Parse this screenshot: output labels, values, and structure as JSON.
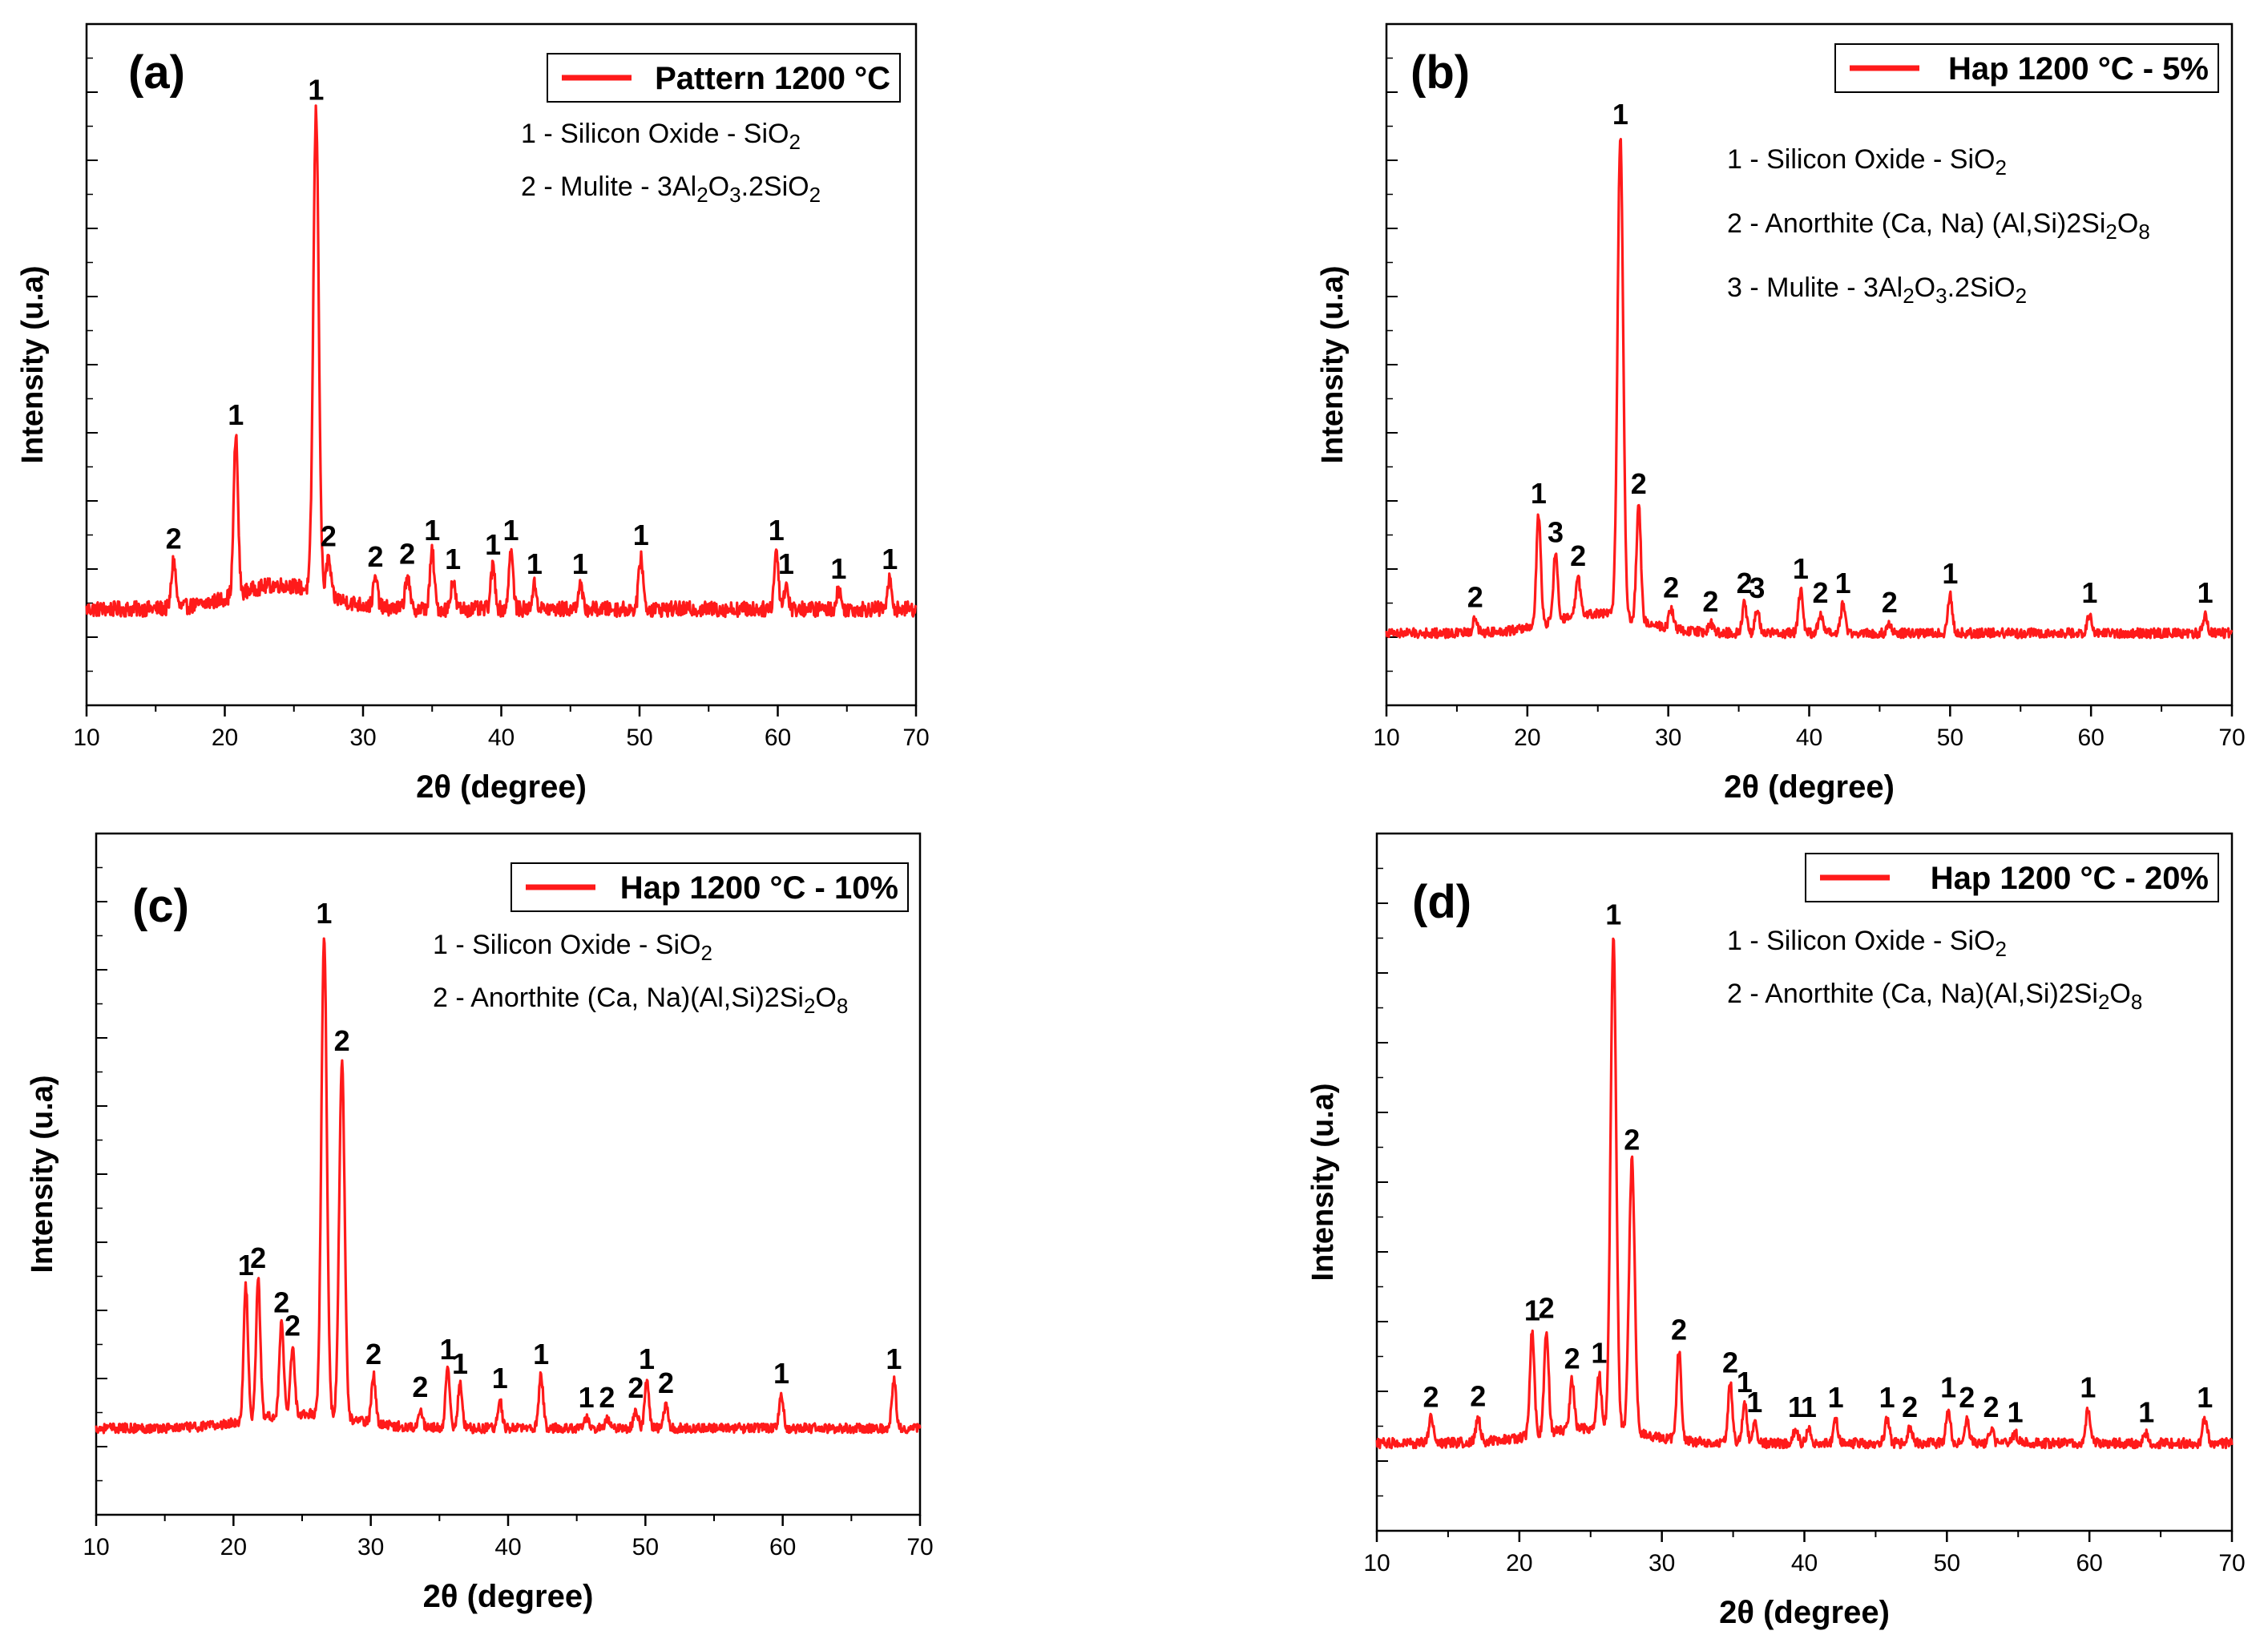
{
  "chart_data": [
    {
      "type": "line",
      "panel_label": "(a)",
      "legend": "Pattern 1200 °C",
      "phases": [
        {
          "prefix": "1 - Silicon Oxide - SiO",
          "sub": "2",
          "rest": "",
          "sub2": "",
          "rest2": ""
        },
        {
          "prefix": "2 - Mulite -  3Al",
          "sub": "2",
          "rest": "O",
          "sub2": "3",
          "rest2": ".2SiO",
          "sub3": "2"
        }
      ],
      "xlabel": "2θ (degree)",
      "ylabel": "Intensity (u.a)",
      "xlim": [
        10,
        70
      ],
      "xticks": [
        "10",
        "20",
        "30",
        "40",
        "50",
        "60",
        "70"
      ],
      "baseline": 10,
      "noise": 1.6,
      "hump": {
        "center": 24,
        "width": 4.5,
        "height": 5
      },
      "peaks": [
        {
          "x": 16.3,
          "h": 10,
          "label": "2"
        },
        {
          "x": 20.8,
          "h": 33,
          "label": "1"
        },
        {
          "x": 26.6,
          "h": 100,
          "label": "1"
        },
        {
          "x": 27.5,
          "h": 8,
          "label": "2"
        },
        {
          "x": 30.9,
          "h": 6,
          "label": "2"
        },
        {
          "x": 33.2,
          "h": 7,
          "label": "2"
        },
        {
          "x": 35.0,
          "h": 12,
          "label": "1"
        },
        {
          "x": 36.5,
          "h": 6,
          "label": "1"
        },
        {
          "x": 39.4,
          "h": 9,
          "label": "1"
        },
        {
          "x": 40.7,
          "h": 12,
          "label": "1"
        },
        {
          "x": 42.4,
          "h": 5,
          "label": "1"
        },
        {
          "x": 45.7,
          "h": 5,
          "label": "1"
        },
        {
          "x": 50.1,
          "h": 11,
          "label": "1"
        },
        {
          "x": 59.9,
          "h": 12,
          "label": "1"
        },
        {
          "x": 60.6,
          "h": 5,
          "label": "1"
        },
        {
          "x": 64.4,
          "h": 4,
          "label": "1"
        },
        {
          "x": 68.1,
          "h": 6,
          "label": "1"
        }
      ]
    },
    {
      "type": "line",
      "panel_label": "(b)",
      "legend": "Hap 1200 °C - 5%",
      "phases": [
        {
          "prefix": "1 - Silicon Oxide - SiO",
          "sub": "2",
          "rest": "",
          "sub2": "",
          "rest2": ""
        },
        {
          "prefix": "2 - Anorthite (Ca, Na) (Al,Si)2Si",
          "sub": "2",
          "rest": "O",
          "sub2": "8",
          "rest2": ""
        },
        {
          "prefix": "3 - Mulite - 3Al",
          "sub": "2",
          "rest": "O",
          "sub2": "3",
          "rest2": ".2SiO",
          "sub3": "2"
        }
      ],
      "xlabel": "2θ (degree)",
      "ylabel": "Intensity (u.a)",
      "xlim": [
        10,
        70
      ],
      "xticks": [
        "10",
        "20",
        "30",
        "40",
        "50",
        "60",
        "70"
      ],
      "baseline": 5,
      "noise": 1.0,
      "hump": {
        "center": 25,
        "width": 4.5,
        "height": 4
      },
      "peaks": [
        {
          "x": 16.3,
          "h": 3,
          "label": "2"
        },
        {
          "x": 20.8,
          "h": 23,
          "label": "1"
        },
        {
          "x": 22.0,
          "h": 14,
          "label": "3"
        },
        {
          "x": 23.6,
          "h": 8,
          "label": "2"
        },
        {
          "x": 26.6,
          "h": 100,
          "label": "1"
        },
        {
          "x": 27.9,
          "h": 24,
          "label": "2"
        },
        {
          "x": 30.2,
          "h": 4,
          "label": "2"
        },
        {
          "x": 33.0,
          "h": 2,
          "label": "2"
        },
        {
          "x": 35.4,
          "h": 6,
          "label": "2"
        },
        {
          "x": 36.3,
          "h": 5,
          "label": "3"
        },
        {
          "x": 39.4,
          "h": 9,
          "label": "1"
        },
        {
          "x": 40.8,
          "h": 4,
          "label": "2"
        },
        {
          "x": 42.4,
          "h": 6,
          "label": "1"
        },
        {
          "x": 45.7,
          "h": 2,
          "label": "2"
        },
        {
          "x": 50.0,
          "h": 8,
          "label": "1"
        },
        {
          "x": 59.9,
          "h": 4,
          "label": "1"
        },
        {
          "x": 68.1,
          "h": 4,
          "label": "1"
        }
      ]
    },
    {
      "type": "line",
      "panel_label": "(c)",
      "legend": "Hap 1200 °C - 10%",
      "phases": [
        {
          "prefix": "1 - Silicon Oxide - SiO",
          "sub": "2",
          "rest": "",
          "sub2": "",
          "rest2": ""
        },
        {
          "prefix": "2 - Anorthite (Ca, Na)(Al,Si)2Si",
          "sub": "2",
          "rest": "O",
          "sub2": "8",
          "rest2": ""
        }
      ],
      "xlabel": "2θ (degree)",
      "ylabel": "Intensity (u.a)",
      "xlim": [
        10,
        70
      ],
      "xticks": [
        "10",
        "20",
        "30",
        "40",
        "50",
        "60",
        "70"
      ],
      "baseline": 8,
      "noise": 1.0,
      "hump": {
        "center": 25,
        "width": 5,
        "height": 3
      },
      "peaks": [
        {
          "x": 20.9,
          "h": 28,
          "label": "1"
        },
        {
          "x": 21.8,
          "h": 29,
          "label": "2"
        },
        {
          "x": 23.5,
          "h": 19,
          "label": "2"
        },
        {
          "x": 24.3,
          "h": 14,
          "label": "2"
        },
        {
          "x": 26.6,
          "h": 100,
          "label": "1"
        },
        {
          "x": 27.9,
          "h": 74,
          "label": "2"
        },
        {
          "x": 30.2,
          "h": 10,
          "label": "2"
        },
        {
          "x": 33.6,
          "h": 4,
          "label": "2"
        },
        {
          "x": 35.6,
          "h": 12,
          "label": "1"
        },
        {
          "x": 36.5,
          "h": 9,
          "label": "1"
        },
        {
          "x": 39.4,
          "h": 6,
          "label": "1"
        },
        {
          "x": 42.4,
          "h": 11,
          "label": "1"
        },
        {
          "x": 45.7,
          "h": 2,
          "label": "1"
        },
        {
          "x": 47.2,
          "h": 2,
          "label": "2"
        },
        {
          "x": 49.3,
          "h": 4,
          "label": "2"
        },
        {
          "x": 50.1,
          "h": 10,
          "label": "1"
        },
        {
          "x": 51.5,
          "h": 5,
          "label": "2"
        },
        {
          "x": 59.9,
          "h": 7,
          "label": "1"
        },
        {
          "x": 68.1,
          "h": 10,
          "label": "1"
        }
      ]
    },
    {
      "type": "line",
      "panel_label": "(d)",
      "legend": "Hap 1200 °C - 20%",
      "phases": [
        {
          "prefix": "1 - Silicon Oxide - SiO",
          "sub": "2",
          "rest": "",
          "sub2": "",
          "rest2": ""
        },
        {
          "prefix": "2 - Anorthite (Ca, Na)(Al,Si)2Si",
          "sub": "2",
          "rest": "O",
          "sub2": "8",
          "rest2": ""
        }
      ],
      "xlabel": "2θ (degree)",
      "ylabel": "Intensity (u.a)",
      "xlim": [
        10,
        70
      ],
      "xticks": [
        "10",
        "20",
        "30",
        "40",
        "50",
        "60",
        "70"
      ],
      "baseline": 8,
      "noise": 1.0,
      "hump": {
        "center": 25,
        "width": 5,
        "height": 3
      },
      "peaks": [
        {
          "x": 13.8,
          "h": 5,
          "label": "2"
        },
        {
          "x": 17.1,
          "h": 5,
          "label": "2"
        },
        {
          "x": 20.9,
          "h": 21,
          "label": "1"
        },
        {
          "x": 21.9,
          "h": 21,
          "label": "2"
        },
        {
          "x": 23.7,
          "h": 10,
          "label": "2"
        },
        {
          "x": 25.6,
          "h": 11,
          "label": "1"
        },
        {
          "x": 26.6,
          "h": 100,
          "label": "1"
        },
        {
          "x": 27.9,
          "h": 55,
          "label": "2"
        },
        {
          "x": 31.2,
          "h": 18,
          "label": "2"
        },
        {
          "x": 34.8,
          "h": 12,
          "label": "2"
        },
        {
          "x": 35.8,
          "h": 8,
          "label": "1"
        },
        {
          "x": 36.5,
          "h": 4,
          "label": "1"
        },
        {
          "x": 39.4,
          "h": 3,
          "label": "1"
        },
        {
          "x": 40.3,
          "h": 3,
          "label": "1"
        },
        {
          "x": 42.2,
          "h": 5,
          "label": "1"
        },
        {
          "x": 45.8,
          "h": 5,
          "label": "1"
        },
        {
          "x": 47.4,
          "h": 3,
          "label": "2"
        },
        {
          "x": 50.1,
          "h": 7,
          "label": "1"
        },
        {
          "x": 51.4,
          "h": 5,
          "label": "2"
        },
        {
          "x": 53.1,
          "h": 3,
          "label": "2"
        },
        {
          "x": 54.8,
          "h": 2,
          "label": "1"
        },
        {
          "x": 59.9,
          "h": 7,
          "label": "1"
        },
        {
          "x": 64.0,
          "h": 2,
          "label": "1"
        },
        {
          "x": 68.1,
          "h": 5,
          "label": "1"
        }
      ]
    }
  ],
  "colors": {
    "series": "#ff1a1a",
    "axis": "#000000",
    "text": "#000000"
  }
}
